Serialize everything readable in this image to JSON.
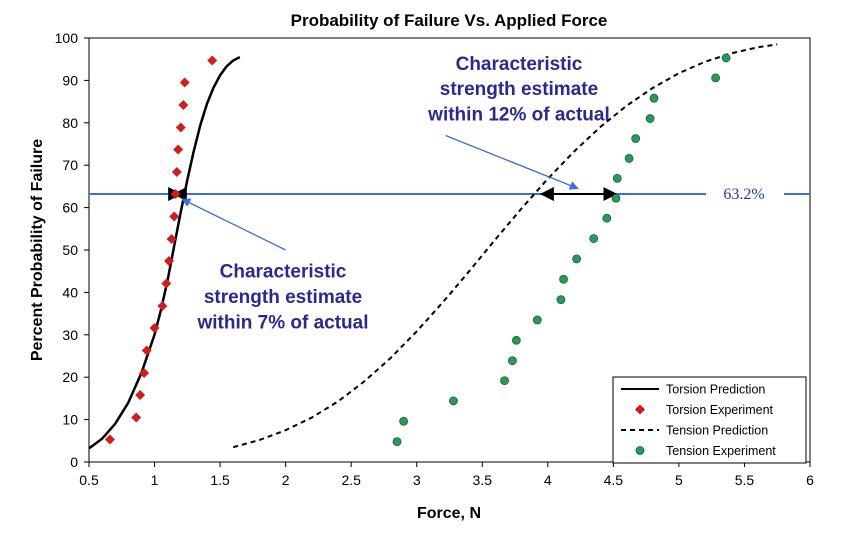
{
  "chart_data": {
    "type": "scatter",
    "title": "Probability of Failure Vs. Applied Force",
    "xlabel": "Force, N",
    "ylabel": "Percent Probability of Failure",
    "xlim": [
      0.5,
      6
    ],
    "ylim": [
      0,
      100
    ],
    "xticks": [
      "0.5",
      "1",
      "1.5",
      "2",
      "2.5",
      "3",
      "3.5",
      "4",
      "4.5",
      "5",
      "5.5",
      "6"
    ],
    "yticks": [
      "0",
      "10",
      "20",
      "30",
      "40",
      "50",
      "60",
      "70",
      "80",
      "90",
      "100"
    ],
    "grid": false,
    "legend_position": "bottom-right",
    "series": [
      {
        "name": "Torsion Prediction",
        "kind": "line",
        "style": "solid",
        "color": "#000000",
        "x": [
          0.5,
          0.6,
          0.7,
          0.8,
          0.9,
          1.0,
          1.05,
          1.1,
          1.15,
          1.2,
          1.25,
          1.3,
          1.35,
          1.4,
          1.45,
          1.5,
          1.55,
          1.6,
          1.65
        ],
        "y": [
          3.2,
          5.5,
          9.0,
          14.0,
          21.0,
          30.0,
          36.0,
          43.0,
          51.0,
          59.0,
          66.5,
          73.5,
          79.5,
          84.5,
          88.3,
          91.2,
          93.3,
          94.7,
          95.5
        ]
      },
      {
        "name": "Torsion Experiment",
        "kind": "marker",
        "marker": "diamond",
        "color": "#cc1f1f",
        "x": [
          0.66,
          0.86,
          0.89,
          0.92,
          0.94,
          1.0,
          1.06,
          1.09,
          1.11,
          1.13,
          1.15,
          1.16,
          1.17,
          1.18,
          1.2,
          1.22,
          1.23,
          1.44
        ],
        "y": [
          5.3,
          10.5,
          15.8,
          21.0,
          26.3,
          31.6,
          36.8,
          42.1,
          47.4,
          52.6,
          57.9,
          63.2,
          68.4,
          73.7,
          78.9,
          84.2,
          89.5,
          94.7
        ]
      },
      {
        "name": "Tension Prediction",
        "kind": "line",
        "style": "dashed",
        "color": "#000000",
        "x": [
          1.6,
          1.8,
          2.0,
          2.2,
          2.4,
          2.6,
          2.8,
          3.0,
          3.2,
          3.4,
          3.6,
          3.8,
          4.0,
          4.2,
          4.4,
          4.6,
          4.8,
          5.0,
          5.2,
          5.4,
          5.6,
          5.75
        ],
        "y": [
          3.5,
          5.2,
          7.5,
          10.5,
          14.3,
          19.0,
          24.5,
          30.8,
          37.7,
          45.0,
          52.5,
          59.8,
          66.8,
          73.2,
          79.0,
          84.0,
          88.2,
          91.7,
          94.4,
          96.4,
          97.8,
          98.5
        ]
      },
      {
        "name": "Tension Experiment",
        "kind": "marker",
        "marker": "circle",
        "color": "#2a9a5a",
        "x": [
          2.85,
          2.9,
          3.28,
          3.67,
          3.73,
          3.76,
          3.92,
          4.1,
          4.12,
          4.22,
          4.35,
          4.45,
          4.52,
          4.53,
          4.62,
          4.67,
          4.78,
          4.81,
          5.28,
          5.36
        ],
        "y": [
          4.8,
          9.6,
          14.4,
          19.2,
          23.9,
          28.7,
          33.5,
          38.3,
          43.1,
          47.9,
          52.7,
          57.5,
          62.2,
          66.9,
          71.6,
          76.3,
          81.0,
          85.8,
          90.6,
          95.3
        ]
      }
    ],
    "reference_line": {
      "y": 63.2,
      "label": "63.2%",
      "color": "#3b6fd8"
    },
    "torsion_bracket": {
      "x1": 1.15,
      "x2": 1.2,
      "y": 63.2
    },
    "tension_bracket": {
      "x1": 3.95,
      "x2": 4.52,
      "y": 63.2
    },
    "annotations": [
      {
        "id": "tension",
        "lines": [
          "Characteristic",
          "strength estimate",
          "within 12% of actual"
        ],
        "text_x": 3.78,
        "text_y": [
          92.5,
          86.5,
          80.5
        ],
        "arrow_from": [
          3.22,
          77.0
        ],
        "arrow_to": [
          4.23,
          64.5
        ]
      },
      {
        "id": "torsion",
        "lines": [
          "Characteristic",
          "strength estimate",
          "within 7% of actual"
        ],
        "text_x": 1.98,
        "text_y": [
          43.5,
          37.5,
          31.5
        ],
        "arrow_from": [
          2.0,
          50.0
        ],
        "arrow_to": [
          1.21,
          62.0
        ]
      }
    ]
  }
}
